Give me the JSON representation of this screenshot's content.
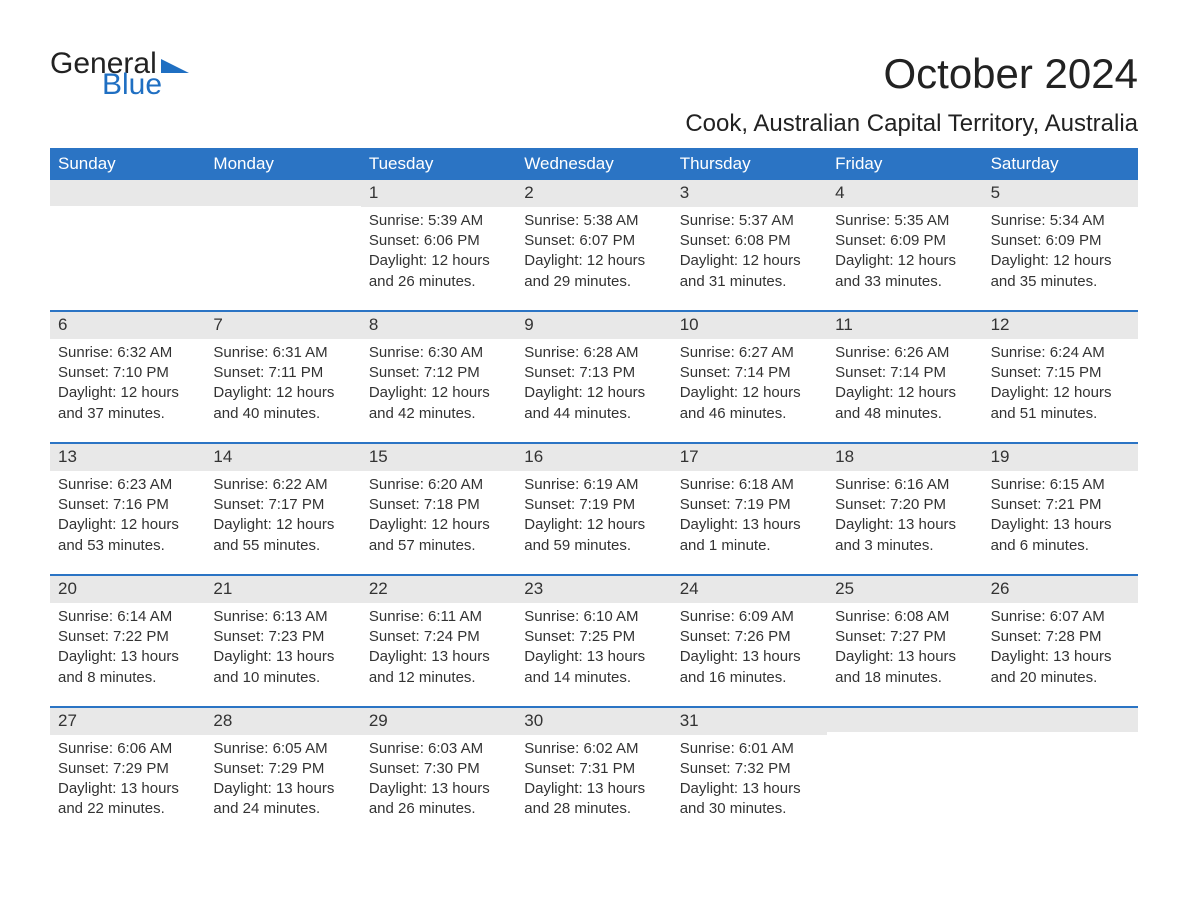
{
  "logo": {
    "general": "General",
    "blue": "Blue"
  },
  "title": "October 2024",
  "subtitle": "Cook, Australian Capital Territory, Australia",
  "colors": {
    "header_bg": "#2b74c4",
    "header_text": "#ffffff",
    "daynum_bg": "#e8e8e8",
    "daynum_border": "#2b74c4",
    "body_text": "#333333",
    "logo_blue": "#1f6fc2",
    "background": "#ffffff"
  },
  "day_labels": [
    "Sunday",
    "Monday",
    "Tuesday",
    "Wednesday",
    "Thursday",
    "Friday",
    "Saturday"
  ],
  "weeks": [
    [
      {
        "day": null
      },
      {
        "day": null
      },
      {
        "day": 1,
        "sunrise": "Sunrise: 5:39 AM",
        "sunset": "Sunset: 6:06 PM",
        "daylight1": "Daylight: 12 hours",
        "daylight2": "and 26 minutes."
      },
      {
        "day": 2,
        "sunrise": "Sunrise: 5:38 AM",
        "sunset": "Sunset: 6:07 PM",
        "daylight1": "Daylight: 12 hours",
        "daylight2": "and 29 minutes."
      },
      {
        "day": 3,
        "sunrise": "Sunrise: 5:37 AM",
        "sunset": "Sunset: 6:08 PM",
        "daylight1": "Daylight: 12 hours",
        "daylight2": "and 31 minutes."
      },
      {
        "day": 4,
        "sunrise": "Sunrise: 5:35 AM",
        "sunset": "Sunset: 6:09 PM",
        "daylight1": "Daylight: 12 hours",
        "daylight2": "and 33 minutes."
      },
      {
        "day": 5,
        "sunrise": "Sunrise: 5:34 AM",
        "sunset": "Sunset: 6:09 PM",
        "daylight1": "Daylight: 12 hours",
        "daylight2": "and 35 minutes."
      }
    ],
    [
      {
        "day": 6,
        "sunrise": "Sunrise: 6:32 AM",
        "sunset": "Sunset: 7:10 PM",
        "daylight1": "Daylight: 12 hours",
        "daylight2": "and 37 minutes."
      },
      {
        "day": 7,
        "sunrise": "Sunrise: 6:31 AM",
        "sunset": "Sunset: 7:11 PM",
        "daylight1": "Daylight: 12 hours",
        "daylight2": "and 40 minutes."
      },
      {
        "day": 8,
        "sunrise": "Sunrise: 6:30 AM",
        "sunset": "Sunset: 7:12 PM",
        "daylight1": "Daylight: 12 hours",
        "daylight2": "and 42 minutes."
      },
      {
        "day": 9,
        "sunrise": "Sunrise: 6:28 AM",
        "sunset": "Sunset: 7:13 PM",
        "daylight1": "Daylight: 12 hours",
        "daylight2": "and 44 minutes."
      },
      {
        "day": 10,
        "sunrise": "Sunrise: 6:27 AM",
        "sunset": "Sunset: 7:14 PM",
        "daylight1": "Daylight: 12 hours",
        "daylight2": "and 46 minutes."
      },
      {
        "day": 11,
        "sunrise": "Sunrise: 6:26 AM",
        "sunset": "Sunset: 7:14 PM",
        "daylight1": "Daylight: 12 hours",
        "daylight2": "and 48 minutes."
      },
      {
        "day": 12,
        "sunrise": "Sunrise: 6:24 AM",
        "sunset": "Sunset: 7:15 PM",
        "daylight1": "Daylight: 12 hours",
        "daylight2": "and 51 minutes."
      }
    ],
    [
      {
        "day": 13,
        "sunrise": "Sunrise: 6:23 AM",
        "sunset": "Sunset: 7:16 PM",
        "daylight1": "Daylight: 12 hours",
        "daylight2": "and 53 minutes."
      },
      {
        "day": 14,
        "sunrise": "Sunrise: 6:22 AM",
        "sunset": "Sunset: 7:17 PM",
        "daylight1": "Daylight: 12 hours",
        "daylight2": "and 55 minutes."
      },
      {
        "day": 15,
        "sunrise": "Sunrise: 6:20 AM",
        "sunset": "Sunset: 7:18 PM",
        "daylight1": "Daylight: 12 hours",
        "daylight2": "and 57 minutes."
      },
      {
        "day": 16,
        "sunrise": "Sunrise: 6:19 AM",
        "sunset": "Sunset: 7:19 PM",
        "daylight1": "Daylight: 12 hours",
        "daylight2": "and 59 minutes."
      },
      {
        "day": 17,
        "sunrise": "Sunrise: 6:18 AM",
        "sunset": "Sunset: 7:19 PM",
        "daylight1": "Daylight: 13 hours",
        "daylight2": "and 1 minute."
      },
      {
        "day": 18,
        "sunrise": "Sunrise: 6:16 AM",
        "sunset": "Sunset: 7:20 PM",
        "daylight1": "Daylight: 13 hours",
        "daylight2": "and 3 minutes."
      },
      {
        "day": 19,
        "sunrise": "Sunrise: 6:15 AM",
        "sunset": "Sunset: 7:21 PM",
        "daylight1": "Daylight: 13 hours",
        "daylight2": "and 6 minutes."
      }
    ],
    [
      {
        "day": 20,
        "sunrise": "Sunrise: 6:14 AM",
        "sunset": "Sunset: 7:22 PM",
        "daylight1": "Daylight: 13 hours",
        "daylight2": "and 8 minutes."
      },
      {
        "day": 21,
        "sunrise": "Sunrise: 6:13 AM",
        "sunset": "Sunset: 7:23 PM",
        "daylight1": "Daylight: 13 hours",
        "daylight2": "and 10 minutes."
      },
      {
        "day": 22,
        "sunrise": "Sunrise: 6:11 AM",
        "sunset": "Sunset: 7:24 PM",
        "daylight1": "Daylight: 13 hours",
        "daylight2": "and 12 minutes."
      },
      {
        "day": 23,
        "sunrise": "Sunrise: 6:10 AM",
        "sunset": "Sunset: 7:25 PM",
        "daylight1": "Daylight: 13 hours",
        "daylight2": "and 14 minutes."
      },
      {
        "day": 24,
        "sunrise": "Sunrise: 6:09 AM",
        "sunset": "Sunset: 7:26 PM",
        "daylight1": "Daylight: 13 hours",
        "daylight2": "and 16 minutes."
      },
      {
        "day": 25,
        "sunrise": "Sunrise: 6:08 AM",
        "sunset": "Sunset: 7:27 PM",
        "daylight1": "Daylight: 13 hours",
        "daylight2": "and 18 minutes."
      },
      {
        "day": 26,
        "sunrise": "Sunrise: 6:07 AM",
        "sunset": "Sunset: 7:28 PM",
        "daylight1": "Daylight: 13 hours",
        "daylight2": "and 20 minutes."
      }
    ],
    [
      {
        "day": 27,
        "sunrise": "Sunrise: 6:06 AM",
        "sunset": "Sunset: 7:29 PM",
        "daylight1": "Daylight: 13 hours",
        "daylight2": "and 22 minutes."
      },
      {
        "day": 28,
        "sunrise": "Sunrise: 6:05 AM",
        "sunset": "Sunset: 7:29 PM",
        "daylight1": "Daylight: 13 hours",
        "daylight2": "and 24 minutes."
      },
      {
        "day": 29,
        "sunrise": "Sunrise: 6:03 AM",
        "sunset": "Sunset: 7:30 PM",
        "daylight1": "Daylight: 13 hours",
        "daylight2": "and 26 minutes."
      },
      {
        "day": 30,
        "sunrise": "Sunrise: 6:02 AM",
        "sunset": "Sunset: 7:31 PM",
        "daylight1": "Daylight: 13 hours",
        "daylight2": "and 28 minutes."
      },
      {
        "day": 31,
        "sunrise": "Sunrise: 6:01 AM",
        "sunset": "Sunset: 7:32 PM",
        "daylight1": "Daylight: 13 hours",
        "daylight2": "and 30 minutes."
      },
      {
        "day": null
      },
      {
        "day": null
      }
    ]
  ]
}
